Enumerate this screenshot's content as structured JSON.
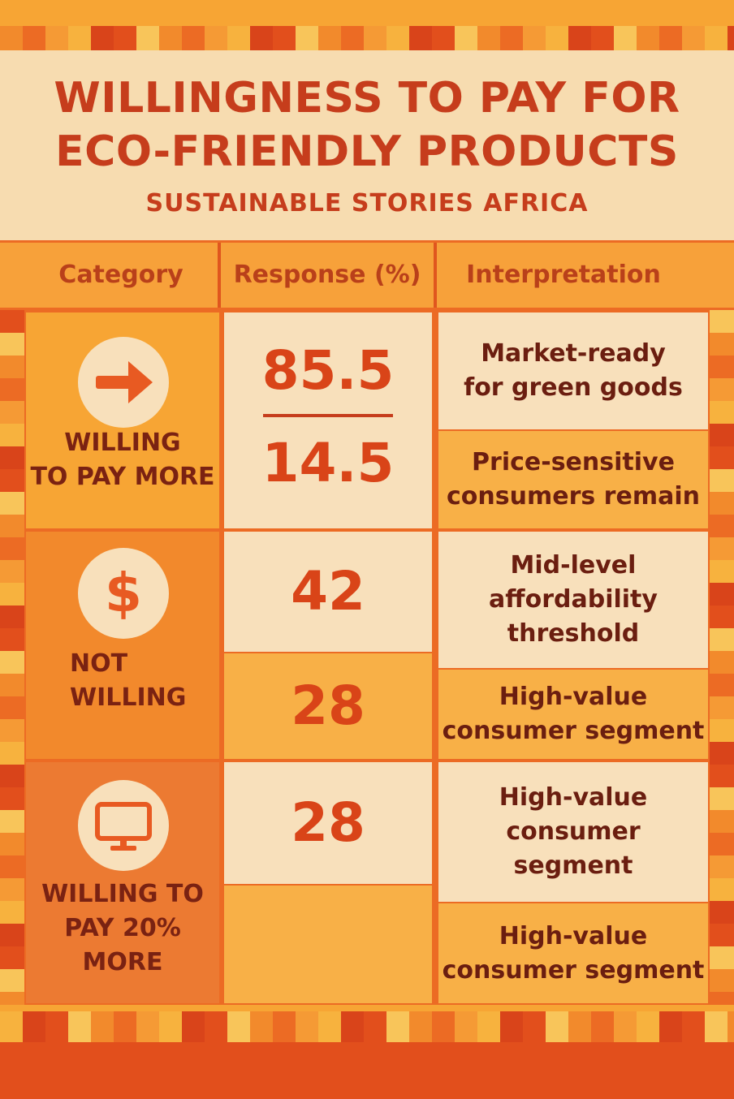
{
  "colors": {
    "header_bg": "#f7dcb0",
    "title": "#c63d1c",
    "accent_orange": "#ec6b24",
    "light_cream": "#f8e0bb",
    "medium_orange": "#f7a534",
    "dark_text": "#7a2212"
  },
  "header": {
    "title_line1": "WILLINGNESS TO PAY FOR",
    "title_line2": "ECO-FRIENDLY PRODUCTS",
    "subtitle": "SUSTAINABLE STORIES AFRICA"
  },
  "columns": {
    "category": "Category",
    "response": "Response (%)",
    "interpretation": "Interpretation"
  },
  "rows": [
    {
      "category_line1": "WILLING",
      "category_line2": "TO PAY MORE",
      "icon": "arrow-right-icon",
      "response_a": "85.5",
      "response_b": "14.5",
      "interp_a_line1": "Market-ready",
      "interp_a_line2": "for green goods",
      "interp_b_line1": "Price-sensitive",
      "interp_b_line2": "consumers remain"
    },
    {
      "category_line1": "NOT",
      "category_line2": "WILLING",
      "icon": "dollar-icon",
      "icon_glyph": "$",
      "response_a": "42",
      "response_b": "28",
      "interp_a_line1": "Mid-level",
      "interp_a_line2": "affordability",
      "interp_a_line3": "threshold",
      "interp_b_line1": "High-value",
      "interp_b_line2": "consumer segment"
    },
    {
      "category_line1": "WILLING TO",
      "category_line2": "PAY 20%",
      "category_line3": "MORE",
      "icon": "monitor-icon",
      "response_a": "28",
      "interp_a_line1": "High-value",
      "interp_a_line2": "consumer",
      "interp_a_line3": "segment",
      "interp_b_line1": "High-value",
      "interp_b_line2": "consumer segment"
    }
  ],
  "chart_data": {
    "type": "table",
    "title": "WILLINGNESS TO PAY FOR ECO-FRIENDLY PRODUCTS",
    "subtitle": "SUSTAINABLE STORIES AFRICA",
    "columns": [
      "Category",
      "Response (%)",
      "Interpretation"
    ],
    "rows": [
      [
        "WILLING TO PAY MORE",
        "85.5",
        "Market-ready for green goods"
      ],
      [
        "WILLING TO PAY MORE",
        "14.5",
        "Price-sensitive consumers remain"
      ],
      [
        "NOT WILLING",
        "42",
        "Mid-level affordability threshold"
      ],
      [
        "NOT WILLING",
        "28",
        "High-value consumer segment"
      ],
      [
        "WILLING TO PAY 20% MORE",
        "28",
        "High-value consumer segment"
      ],
      [
        "WILLING TO PAY 20% MORE",
        "",
        "High-value consumer segment"
      ]
    ]
  }
}
